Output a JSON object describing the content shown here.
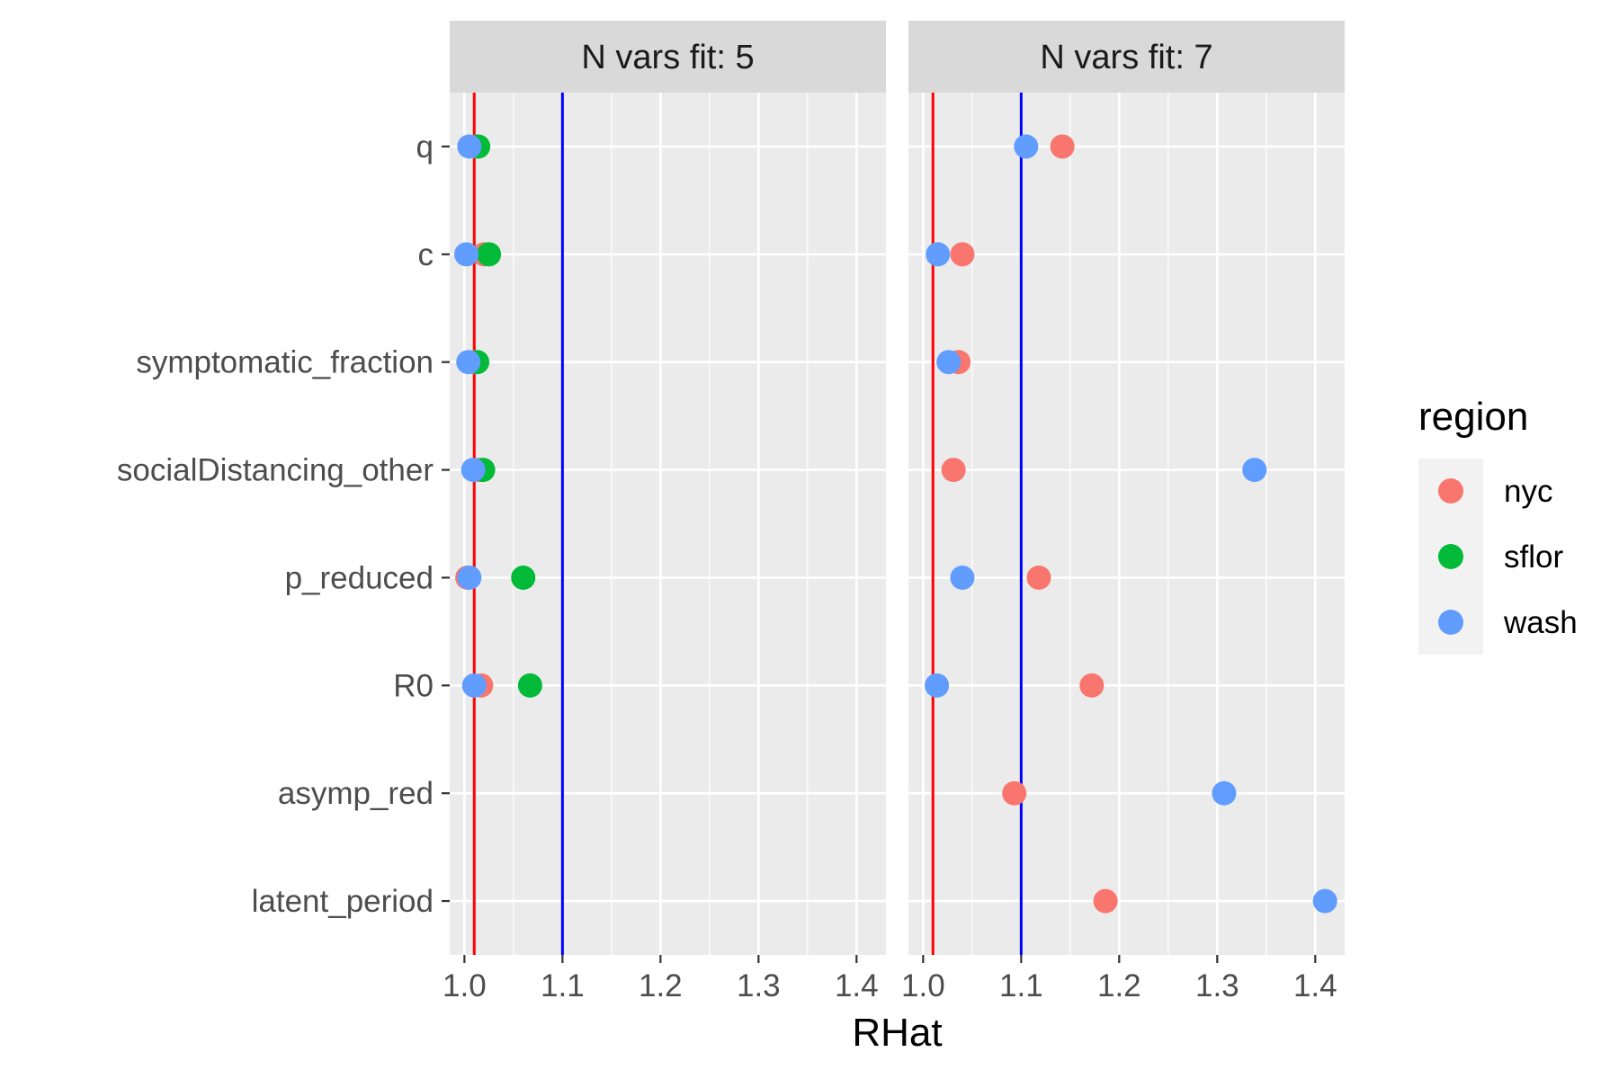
{
  "chart_data": {
    "type": "scatter",
    "xlabel": "RHat",
    "xlim": [
      0.985,
      1.43
    ],
    "x_ticks": [
      1.0,
      1.1,
      1.2,
      1.3,
      1.4
    ],
    "x_tick_labels": [
      "1.0",
      "1.1",
      "1.2",
      "1.3",
      "1.4"
    ],
    "y_categories": [
      "q",
      "c",
      "symptomatic_fraction",
      "socialDistancing_other",
      "p_reduced",
      "R0",
      "asymp_red",
      "latent_period"
    ],
    "reference_lines": [
      {
        "value": 1.01,
        "color": "#FF0000"
      },
      {
        "value": 1.1,
        "color": "#0000FF"
      }
    ],
    "panel_background": "#EBEBEB",
    "strip_background": "#D9D9D9",
    "grid": true,
    "legend": {
      "title": "region",
      "position": "right",
      "entries": [
        {
          "name": "nyc",
          "color": "#F8766D"
        },
        {
          "name": "sflor",
          "color": "#00BA38"
        },
        {
          "name": "wash",
          "color": "#619CFF"
        }
      ]
    },
    "panels": [
      {
        "strip_label": "N vars fit: 5",
        "points": [
          {
            "region": "nyc",
            "y": "q",
            "x": 1.012
          },
          {
            "region": "sflor",
            "y": "q",
            "x": 1.014
          },
          {
            "region": "wash",
            "y": "q",
            "x": 1.005
          },
          {
            "region": "nyc",
            "y": "c",
            "x": 1.02
          },
          {
            "region": "sflor",
            "y": "c",
            "x": 1.025
          },
          {
            "region": "wash",
            "y": "c",
            "x": 1.002
          },
          {
            "region": "nyc",
            "y": "symptomatic_fraction",
            "x": 1.01
          },
          {
            "region": "sflor",
            "y": "symptomatic_fraction",
            "x": 1.013
          },
          {
            "region": "wash",
            "y": "symptomatic_fraction",
            "x": 1.004
          },
          {
            "region": "nyc",
            "y": "socialDistancing_other",
            "x": 1.015
          },
          {
            "region": "sflor",
            "y": "socialDistancing_other",
            "x": 1.019
          },
          {
            "region": "wash",
            "y": "socialDistancing_other",
            "x": 1.009
          },
          {
            "region": "nyc",
            "y": "p_reduced",
            "x": 1.003
          },
          {
            "region": "sflor",
            "y": "p_reduced",
            "x": 1.06
          },
          {
            "region": "wash",
            "y": "p_reduced",
            "x": 1.005
          },
          {
            "region": "nyc",
            "y": "R0",
            "x": 1.017
          },
          {
            "region": "sflor",
            "y": "R0",
            "x": 1.067
          },
          {
            "region": "wash",
            "y": "R0",
            "x": 1.01
          }
        ]
      },
      {
        "strip_label": "N vars fit: 7",
        "points": [
          {
            "region": "nyc",
            "y": "q",
            "x": 1.142
          },
          {
            "region": "wash",
            "y": "q",
            "x": 1.105
          },
          {
            "region": "nyc",
            "y": "c",
            "x": 1.04
          },
          {
            "region": "wash",
            "y": "c",
            "x": 1.015
          },
          {
            "region": "nyc",
            "y": "symptomatic_fraction",
            "x": 1.036
          },
          {
            "region": "wash",
            "y": "symptomatic_fraction",
            "x": 1.026
          },
          {
            "region": "nyc",
            "y": "socialDistancing_other",
            "x": 1.031
          },
          {
            "region": "wash",
            "y": "socialDistancing_other",
            "x": 1.338
          },
          {
            "region": "nyc",
            "y": "p_reduced",
            "x": 1.118
          },
          {
            "region": "wash",
            "y": "p_reduced",
            "x": 1.04
          },
          {
            "region": "nyc",
            "y": "R0",
            "x": 1.172
          },
          {
            "region": "wash",
            "y": "R0",
            "x": 1.014
          },
          {
            "region": "nyc",
            "y": "asymp_red",
            "x": 1.093
          },
          {
            "region": "wash",
            "y": "asymp_red",
            "x": 1.307
          },
          {
            "region": "nyc",
            "y": "latent_period",
            "x": 1.186
          },
          {
            "region": "wash",
            "y": "latent_period",
            "x": 1.41
          }
        ]
      }
    ]
  }
}
